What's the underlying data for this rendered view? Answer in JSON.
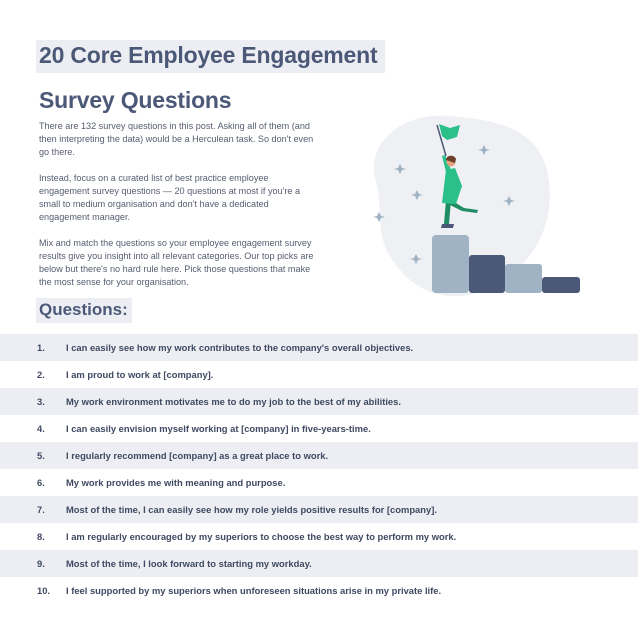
{
  "title": {
    "line1": "20 Core Employee Engagement",
    "line2": "Survey Questions"
  },
  "intro": [
    "There are 132 survey questions in this post. Asking all of them (and then interpreting the data) would be a Herculean task. So don't even go there.",
    "Instead, focus on a curated list of best practice employee engagement survey questions — 20 questions at most if you're a small to medium organisation and don't have a dedicated engagement manager.",
    "Mix and match the questions so your employee engagement survey results give you insight into all relevant categories. Our top picks are below but there's no hard rule here. Pick those questions that make the most sense for your organisation."
  ],
  "questions_heading": "Questions:",
  "questions": [
    {
      "num": "1.",
      "text": "I can easily see how my work contributes to the company's overall objectives."
    },
    {
      "num": "2.",
      "text": "I am proud to work at [company]."
    },
    {
      "num": "3.",
      "text": "My work environment motivates me to do my job to the best of my abilities."
    },
    {
      "num": "4.",
      "text": "I can easily envision myself working at [company] in five-years-time."
    },
    {
      "num": "5.",
      "text": "I regularly recommend [company] as a great place to work."
    },
    {
      "num": "6.",
      "text": "My work provides me with meaning and purpose."
    },
    {
      "num": "7.",
      "text": "Most of the time, I can easily see how my role yields positive results for [company]."
    },
    {
      "num": "8.",
      "text": "I am regularly encouraged by my superiors to choose the best way to perform my work."
    },
    {
      "num": "9.",
      "text": "Most of the time, I look forward to starting my workday."
    },
    {
      "num": "10.",
      "text": "I feel supported by my superiors when unforeseen situations arise in my private life."
    }
  ],
  "colors": {
    "heading": "#4b5877",
    "row_shade": "#eceef3",
    "flag": "#2bbf8a",
    "bar_light": "#9fb3c4",
    "bar_dark": "#4b5877"
  },
  "illustration": {
    "icon": "person-with-flag-on-podium-icon"
  }
}
